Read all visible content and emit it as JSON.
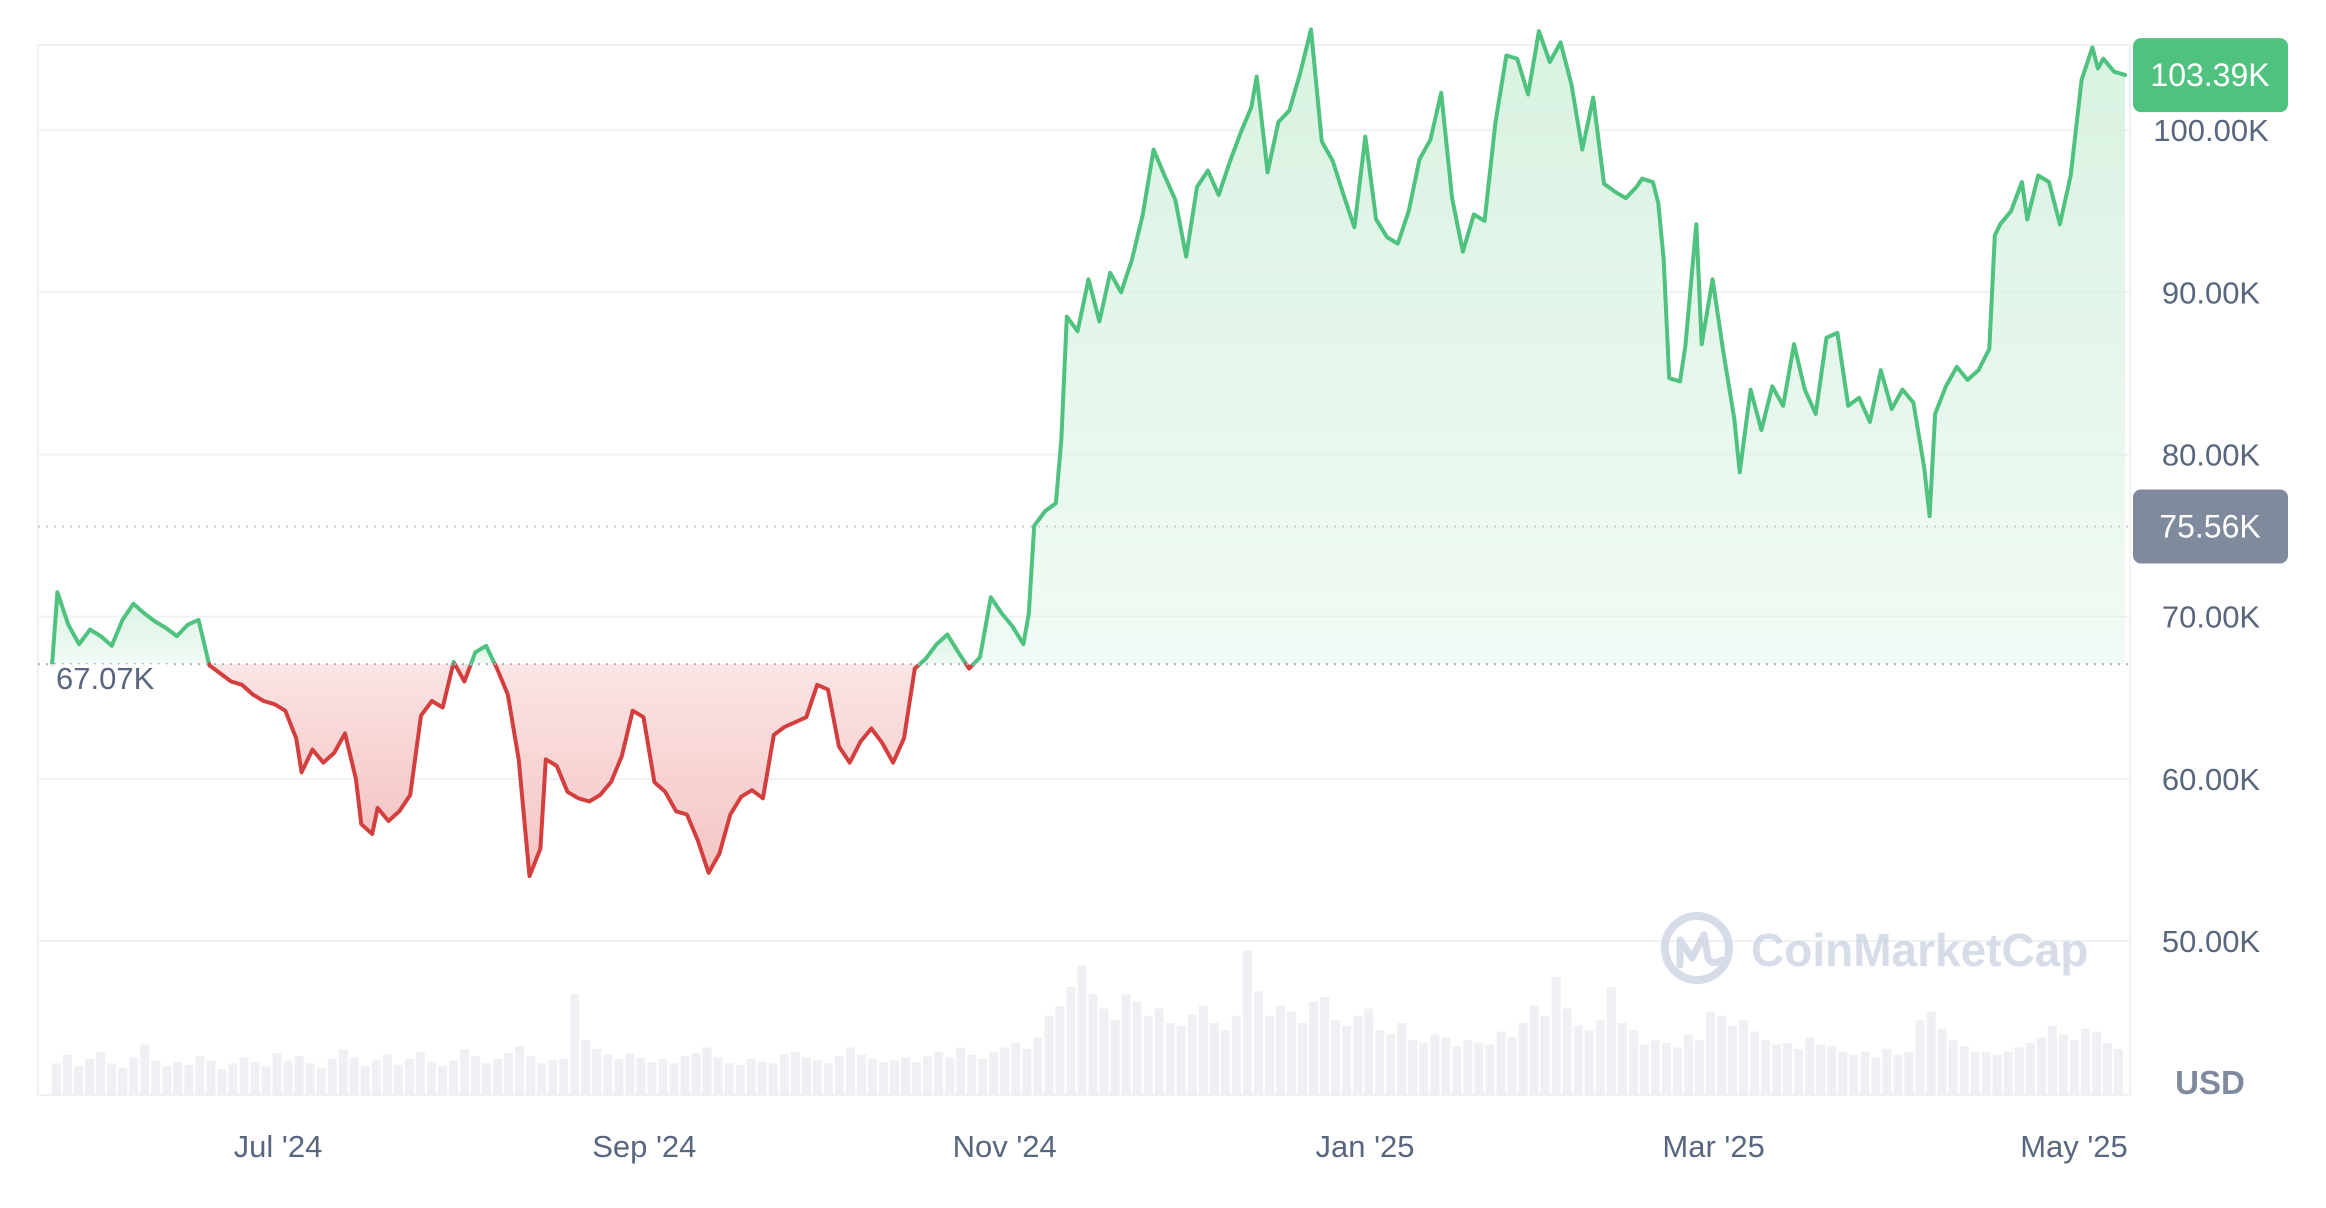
{
  "chart_data": {
    "type": "area",
    "currency_label": "USD",
    "y_unit_suffix": "K",
    "ylim": [
      40000,
      110000
    ],
    "yticks": [
      {
        "value": 50000,
        "label": "50.00K"
      },
      {
        "value": 60000,
        "label": "60.00K"
      },
      {
        "value": 70000,
        "label": "70.00K"
      },
      {
        "value": 80000,
        "label": "80.00K"
      },
      {
        "value": 90000,
        "label": "90.00K"
      },
      {
        "value": 100000,
        "label": "100.00K"
      }
    ],
    "x_start": "2024-05-09",
    "x_end": "2025-05-09",
    "xticks": [
      {
        "date": "2024-07-01",
        "label": "Jul '24"
      },
      {
        "date": "2024-09-01",
        "label": "Sep '24"
      },
      {
        "date": "2024-11-01",
        "label": "Nov '24"
      },
      {
        "date": "2025-01-01",
        "label": "Jan '25"
      },
      {
        "date": "2025-03-01",
        "label": "Mar '25"
      },
      {
        "date": "2025-05-01",
        "label": "May '25"
      }
    ],
    "baseline": {
      "value": 67070,
      "label": "67.07K"
    },
    "reference_line": {
      "value": 75560,
      "label": "75.56K"
    },
    "current_price": {
      "value": 103390,
      "label": "103.39K"
    },
    "colors": {
      "up": "#16c784",
      "up_line": "#4ec27e",
      "down_line": "#d33f3f",
      "up_fill": "#d8f2e1",
      "down_fill": "#f5c4c4",
      "grid": "#eff2f5",
      "volume": "#eef0f3",
      "badge_up": "#4ec27e",
      "badge_ref": "#808a9d",
      "axis_text": "#58667e",
      "watermark": "#cfd6e4"
    },
    "series": [
      {
        "points": [
          [
            "2024-05-09",
            67000
          ],
          [
            "2024-05-10",
            71500
          ],
          [
            "2024-05-12",
            69500
          ],
          [
            "2024-05-14",
            68300
          ],
          [
            "2024-05-16",
            69200
          ],
          [
            "2024-05-18",
            68800
          ],
          [
            "2024-05-20",
            68200
          ],
          [
            "2024-05-22",
            69800
          ],
          [
            "2024-05-24",
            70800
          ],
          [
            "2024-05-26",
            70200
          ],
          [
            "2024-05-28",
            69700
          ],
          [
            "2024-05-30",
            69300
          ],
          [
            "2024-06-01",
            68800
          ],
          [
            "2024-06-03",
            69500
          ],
          [
            "2024-06-05",
            69800
          ],
          [
            "2024-06-07",
            67000
          ],
          [
            "2024-06-09",
            66500
          ],
          [
            "2024-06-11",
            66000
          ],
          [
            "2024-06-13",
            65800
          ],
          [
            "2024-06-15",
            65200
          ],
          [
            "2024-06-17",
            64800
          ],
          [
            "2024-06-19",
            64600
          ],
          [
            "2024-06-21",
            64200
          ],
          [
            "2024-06-23",
            62500
          ],
          [
            "2024-06-24",
            60400
          ],
          [
            "2024-06-26",
            61800
          ],
          [
            "2024-06-28",
            61000
          ],
          [
            "2024-06-30",
            61600
          ],
          [
            "2024-07-02",
            62800
          ],
          [
            "2024-07-04",
            60000
          ],
          [
            "2024-07-05",
            57200
          ],
          [
            "2024-07-07",
            56600
          ],
          [
            "2024-07-08",
            58200
          ],
          [
            "2024-07-10",
            57400
          ],
          [
            "2024-07-12",
            58000
          ],
          [
            "2024-07-14",
            59000
          ],
          [
            "2024-07-16",
            63900
          ],
          [
            "2024-07-18",
            64800
          ],
          [
            "2024-07-20",
            64400
          ],
          [
            "2024-07-22",
            67200
          ],
          [
            "2024-07-24",
            66000
          ],
          [
            "2024-07-26",
            67800
          ],
          [
            "2024-07-28",
            68200
          ],
          [
            "2024-07-30",
            66800
          ],
          [
            "2024-08-01",
            65200
          ],
          [
            "2024-08-03",
            61200
          ],
          [
            "2024-08-05",
            54000
          ],
          [
            "2024-08-07",
            55700
          ],
          [
            "2024-08-08",
            61200
          ],
          [
            "2024-08-10",
            60800
          ],
          [
            "2024-08-12",
            59200
          ],
          [
            "2024-08-14",
            58800
          ],
          [
            "2024-08-16",
            58600
          ],
          [
            "2024-08-18",
            59000
          ],
          [
            "2024-08-20",
            59800
          ],
          [
            "2024-08-22",
            61400
          ],
          [
            "2024-08-24",
            64200
          ],
          [
            "2024-08-26",
            63800
          ],
          [
            "2024-08-28",
            59800
          ],
          [
            "2024-08-30",
            59200
          ],
          [
            "2024-09-01",
            58000
          ],
          [
            "2024-09-03",
            57800
          ],
          [
            "2024-09-05",
            56200
          ],
          [
            "2024-09-07",
            54200
          ],
          [
            "2024-09-09",
            55400
          ],
          [
            "2024-09-11",
            57800
          ],
          [
            "2024-09-13",
            58900
          ],
          [
            "2024-09-15",
            59300
          ],
          [
            "2024-09-17",
            58800
          ],
          [
            "2024-09-19",
            62700
          ],
          [
            "2024-09-21",
            63200
          ],
          [
            "2024-09-23",
            63500
          ],
          [
            "2024-09-25",
            63800
          ],
          [
            "2024-09-27",
            65800
          ],
          [
            "2024-09-29",
            65500
          ],
          [
            "2024-10-01",
            62000
          ],
          [
            "2024-10-03",
            61000
          ],
          [
            "2024-10-05",
            62300
          ],
          [
            "2024-10-07",
            63100
          ],
          [
            "2024-10-09",
            62200
          ],
          [
            "2024-10-11",
            61000
          ],
          [
            "2024-10-13",
            62500
          ],
          [
            "2024-10-15",
            66800
          ],
          [
            "2024-10-17",
            67400
          ],
          [
            "2024-10-19",
            68300
          ],
          [
            "2024-10-21",
            68900
          ],
          [
            "2024-10-23",
            67800
          ],
          [
            "2024-10-25",
            66800
          ],
          [
            "2024-10-27",
            67500
          ],
          [
            "2024-10-29",
            71200
          ],
          [
            "2024-10-31",
            70200
          ],
          [
            "2024-11-02",
            69400
          ],
          [
            "2024-11-04",
            68300
          ],
          [
            "2024-11-05",
            70200
          ],
          [
            "2024-11-06",
            75600
          ],
          [
            "2024-11-08",
            76500
          ],
          [
            "2024-11-10",
            77000
          ],
          [
            "2024-11-11",
            81000
          ],
          [
            "2024-11-12",
            88500
          ],
          [
            "2024-11-14",
            87600
          ],
          [
            "2024-11-16",
            90800
          ],
          [
            "2024-11-18",
            88200
          ],
          [
            "2024-11-20",
            91200
          ],
          [
            "2024-11-22",
            90000
          ],
          [
            "2024-11-24",
            92000
          ],
          [
            "2024-11-26",
            94800
          ],
          [
            "2024-11-28",
            98800
          ],
          [
            "2024-11-30",
            97200
          ],
          [
            "2024-12-02",
            95700
          ],
          [
            "2024-12-04",
            92200
          ],
          [
            "2024-12-06",
            96500
          ],
          [
            "2024-12-08",
            97500
          ],
          [
            "2024-12-10",
            96000
          ],
          [
            "2024-12-12",
            98000
          ],
          [
            "2024-12-14",
            99800
          ],
          [
            "2024-12-16",
            101400
          ],
          [
            "2024-12-17",
            103300
          ],
          [
            "2024-12-19",
            97400
          ],
          [
            "2024-12-21",
            100500
          ],
          [
            "2024-12-23",
            101200
          ],
          [
            "2024-12-25",
            103500
          ],
          [
            "2024-12-27",
            106200
          ],
          [
            "2024-12-29",
            99300
          ],
          [
            "2024-12-31",
            98100
          ],
          [
            "2025-01-02",
            96000
          ],
          [
            "2025-01-04",
            94000
          ],
          [
            "2025-01-06",
            99600
          ],
          [
            "2025-01-08",
            94500
          ],
          [
            "2025-01-10",
            93400
          ],
          [
            "2025-01-12",
            93000
          ],
          [
            "2025-01-14",
            95000
          ],
          [
            "2025-01-16",
            98200
          ],
          [
            "2025-01-18",
            99400
          ],
          [
            "2025-01-20",
            102300
          ],
          [
            "2025-01-22",
            95800
          ],
          [
            "2025-01-24",
            92500
          ],
          [
            "2025-01-26",
            94800
          ],
          [
            "2025-01-28",
            94400
          ],
          [
            "2025-01-30",
            100500
          ],
          [
            "2025-02-01",
            104600
          ],
          [
            "2025-02-03",
            104400
          ],
          [
            "2025-02-05",
            102200
          ],
          [
            "2025-02-07",
            106100
          ],
          [
            "2025-02-09",
            104200
          ],
          [
            "2025-02-11",
            105400
          ],
          [
            "2025-02-13",
            102800
          ],
          [
            "2025-02-15",
            98800
          ],
          [
            "2025-02-17",
            102000
          ],
          [
            "2025-02-19",
            96700
          ],
          [
            "2025-02-21",
            96200
          ],
          [
            "2025-02-23",
            95800
          ],
          [
            "2025-02-25",
            96500
          ],
          [
            "2025-02-26",
            97000
          ],
          [
            "2025-02-28",
            96800
          ],
          [
            "2025-03-01",
            95500
          ],
          [
            "2025-03-02",
            92000
          ],
          [
            "2025-03-03",
            84700
          ],
          [
            "2025-03-05",
            84500
          ],
          [
            "2025-03-06",
            86700
          ],
          [
            "2025-03-08",
            94200
          ],
          [
            "2025-03-09",
            86800
          ],
          [
            "2025-03-11",
            90800
          ],
          [
            "2025-03-13",
            86300
          ],
          [
            "2025-03-15",
            82200
          ],
          [
            "2025-03-16",
            78900
          ],
          [
            "2025-03-18",
            84000
          ],
          [
            "2025-03-20",
            81500
          ],
          [
            "2025-03-22",
            84200
          ],
          [
            "2025-03-24",
            83000
          ],
          [
            "2025-03-26",
            86800
          ],
          [
            "2025-03-28",
            84000
          ],
          [
            "2025-03-30",
            82500
          ],
          [
            "2025-04-01",
            87200
          ],
          [
            "2025-04-03",
            87500
          ],
          [
            "2025-04-05",
            83000
          ],
          [
            "2025-04-07",
            83500
          ],
          [
            "2025-04-09",
            82000
          ],
          [
            "2025-04-11",
            85200
          ],
          [
            "2025-04-13",
            82800
          ],
          [
            "2025-04-15",
            84000
          ],
          [
            "2025-04-17",
            83200
          ],
          [
            "2025-04-19",
            79200
          ],
          [
            "2025-04-20",
            76200
          ],
          [
            "2025-04-21",
            82500
          ],
          [
            "2025-04-23",
            84200
          ],
          [
            "2025-04-25",
            85400
          ],
          [
            "2025-04-27",
            84600
          ],
          [
            "2025-04-29",
            85200
          ],
          [
            "2025-05-01",
            86500
          ],
          [
            "2025-05-02",
            93500
          ],
          [
            "2025-05-03",
            94200
          ],
          [
            "2025-05-05",
            95000
          ],
          [
            "2025-05-07",
            96800
          ],
          [
            "2025-05-08",
            94500
          ],
          [
            "2025-05-10",
            97200
          ],
          [
            "2025-05-12",
            96800
          ],
          [
            "2025-05-14",
            94200
          ],
          [
            "2025-05-16",
            97200
          ],
          [
            "2025-05-18",
            103100
          ],
          [
            "2025-05-20",
            105100
          ],
          [
            "2025-05-21",
            103800
          ],
          [
            "2025-05-22",
            104400
          ],
          [
            "2025-05-24",
            103600
          ],
          [
            "2025-05-26",
            103400
          ]
        ]
      }
    ],
    "volume_relative": [
      0.22,
      0.28,
      0.2,
      0.25,
      0.3,
      0.22,
      0.19,
      0.26,
      0.35,
      0.24,
      0.2,
      0.23,
      0.21,
      0.27,
      0.24,
      0.18,
      0.22,
      0.26,
      0.23,
      0.2,
      0.29,
      0.24,
      0.27,
      0.22,
      0.19,
      0.25,
      0.32,
      0.26,
      0.2,
      0.24,
      0.28,
      0.21,
      0.25,
      0.3,
      0.23,
      0.2,
      0.24,
      0.32,
      0.27,
      0.22,
      0.25,
      0.29,
      0.34,
      0.27,
      0.22,
      0.24,
      0.25,
      0.7,
      0.38,
      0.32,
      0.28,
      0.25,
      0.29,
      0.26,
      0.23,
      0.25,
      0.22,
      0.27,
      0.29,
      0.33,
      0.26,
      0.22,
      0.21,
      0.25,
      0.23,
      0.22,
      0.28,
      0.3,
      0.26,
      0.24,
      0.22,
      0.27,
      0.33,
      0.28,
      0.25,
      0.23,
      0.24,
      0.26,
      0.23,
      0.27,
      0.3,
      0.26,
      0.33,
      0.28,
      0.25,
      0.3,
      0.33,
      0.36,
      0.32,
      0.4,
      0.55,
      0.62,
      0.75,
      0.9,
      0.7,
      0.6,
      0.52,
      0.7,
      0.65,
      0.55,
      0.6,
      0.5,
      0.48,
      0.56,
      0.62,
      0.5,
      0.45,
      0.55,
      1.0,
      0.72,
      0.55,
      0.62,
      0.58,
      0.5,
      0.65,
      0.68,
      0.52,
      0.48,
      0.55,
      0.6,
      0.45,
      0.42,
      0.5,
      0.38,
      0.36,
      0.42,
      0.4,
      0.34,
      0.38,
      0.36,
      0.35,
      0.44,
      0.4,
      0.5,
      0.62,
      0.55,
      0.82,
      0.6,
      0.48,
      0.45,
      0.52,
      0.75,
      0.5,
      0.45,
      0.35,
      0.38,
      0.36,
      0.33,
      0.42,
      0.38,
      0.58,
      0.55,
      0.48,
      0.52,
      0.44,
      0.38,
      0.35,
      0.36,
      0.32,
      0.4,
      0.35,
      0.34,
      0.3,
      0.28,
      0.3,
      0.26,
      0.32,
      0.28,
      0.3,
      0.52,
      0.58,
      0.46,
      0.38,
      0.34,
      0.3,
      0.3,
      0.28,
      0.3,
      0.33,
      0.36,
      0.4,
      0.48,
      0.42,
      0.38,
      0.46,
      0.44,
      0.36,
      0.32
    ]
  },
  "watermark": {
    "text": "CoinMarketCap",
    "icon": "coinmarketcap-logo-icon"
  }
}
